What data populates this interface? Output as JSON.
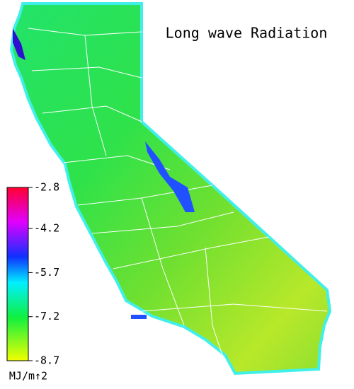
{
  "title": "Long wave Radiation",
  "colorbar": {
    "lim": [
      -2.8,
      -8.7
    ],
    "ticks": [
      -2.8,
      -4.2,
      -5.7,
      -7.2,
      -8.7
    ],
    "unit": "MJ/m↑2"
  }
}
